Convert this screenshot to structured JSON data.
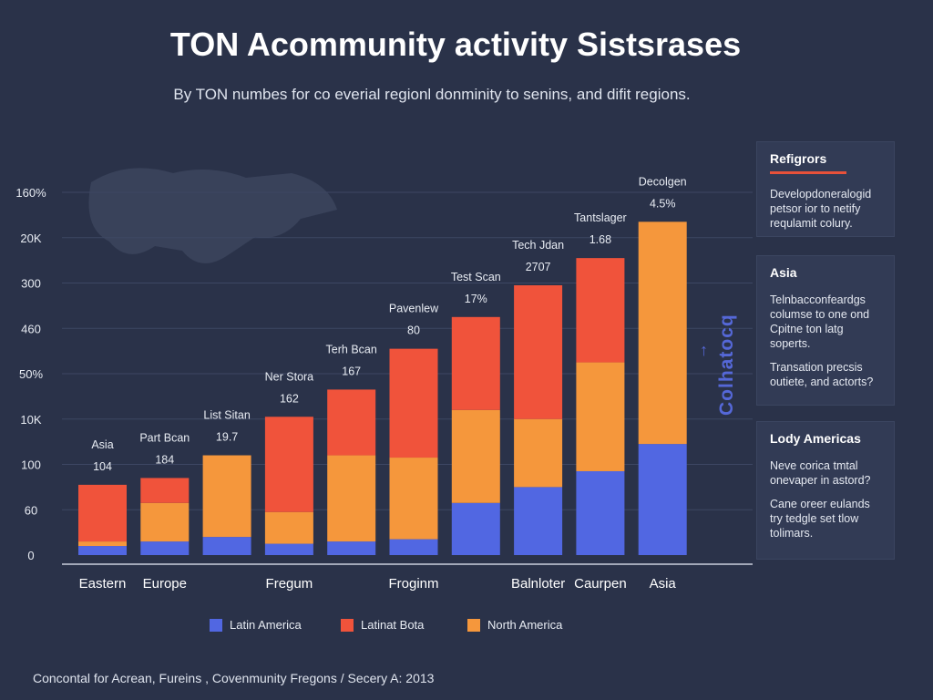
{
  "title": "TON Acommunity activity Sistsrases",
  "subtitle": "By TON numbes for co everial regionl donminity to senins, and difit regions.",
  "footer": "Concontal for Acrean, Fureins , Covenmunity Fregons / Secery A: 2013",
  "colors": {
    "background": "#2a3249",
    "latin_america": "#5167e2",
    "latinat_bota": "#f0533b",
    "north_america": "#f5973c",
    "grid": "#3d4763",
    "panel": "#323b55",
    "accent": "#e8513a"
  },
  "chart_data": {
    "type": "bar",
    "stacked": true,
    "y_tick_labels": [
      "0",
      "60",
      "100",
      "10K",
      "50%",
      "460",
      "300",
      "20K",
      "160%"
    ],
    "ylim": [
      0,
      8
    ],
    "grid": true,
    "categories": [
      "Eastern",
      "Europe",
      "",
      "Fregum",
      "",
      "Froginm",
      "",
      "Balnloter",
      "Caurpen",
      "Asia"
    ],
    "series": [
      {
        "name": "Latin America",
        "color": "#5167e2",
        "values": [
          0.2,
          0.3,
          0.4,
          0.25,
          0.3,
          0.35,
          1.15,
          1.5,
          1.85,
          2.45
        ]
      },
      {
        "name": "North America",
        "color": "#f5973c",
        "values": [
          0.1,
          0.85,
          1.8,
          0.7,
          1.9,
          1.8,
          2.05,
          1.5,
          2.4,
          4.9
        ]
      },
      {
        "name": "Latinat Bota",
        "color": "#f0533b",
        "values": [
          1.25,
          0.55,
          0,
          2.1,
          1.45,
          2.4,
          2.05,
          2.95,
          2.3,
          0
        ]
      }
    ],
    "bar_labels": [
      {
        "name": "Asia",
        "value": "104"
      },
      {
        "name": "Part Bcan",
        "value": "184"
      },
      {
        "name": "List Sitan",
        "value": "19.7"
      },
      {
        "name": "Ner Stora",
        "value": "162"
      },
      {
        "name": "Terh Bcan",
        "value": "167"
      },
      {
        "name": "Pavenlew",
        "value": "80"
      },
      {
        "name": "Test Scan",
        "value": "17%"
      },
      {
        "name": "Tech Jdan",
        "value": "2707"
      },
      {
        "name": "Tantslager",
        "value": "1.68"
      },
      {
        "name": "Decolgen",
        "value": "4.5%"
      }
    ],
    "legend": [
      {
        "label": "Latin America",
        "color": "#5167e2"
      },
      {
        "label": "Latinat Bota",
        "color": "#f0533b"
      },
      {
        "label": "North America",
        "color": "#f5973c"
      }
    ]
  },
  "side_label": "Colhatocq",
  "side_arrow": "↑",
  "panels": [
    {
      "heading": "Refigrors",
      "lines": [
        "Developdoneralogid",
        "petsor ior to netify",
        "requlamit colury."
      ],
      "extra": []
    },
    {
      "heading": "Asia",
      "lines": [
        "Telnbacconfeardgs",
        "columse to one ond",
        "Cpitne ton latg",
        "soperts."
      ],
      "extra": [
        "Transation precsis",
        "outiete, and actorts?"
      ]
    },
    {
      "heading": "Lody Americas",
      "lines": [
        "Neve corica tmtal",
        "onevaper in astord?"
      ],
      "extra": [
        "Cane oreer eulands",
        "try tedgle set tlow",
        "tolimars."
      ]
    }
  ]
}
